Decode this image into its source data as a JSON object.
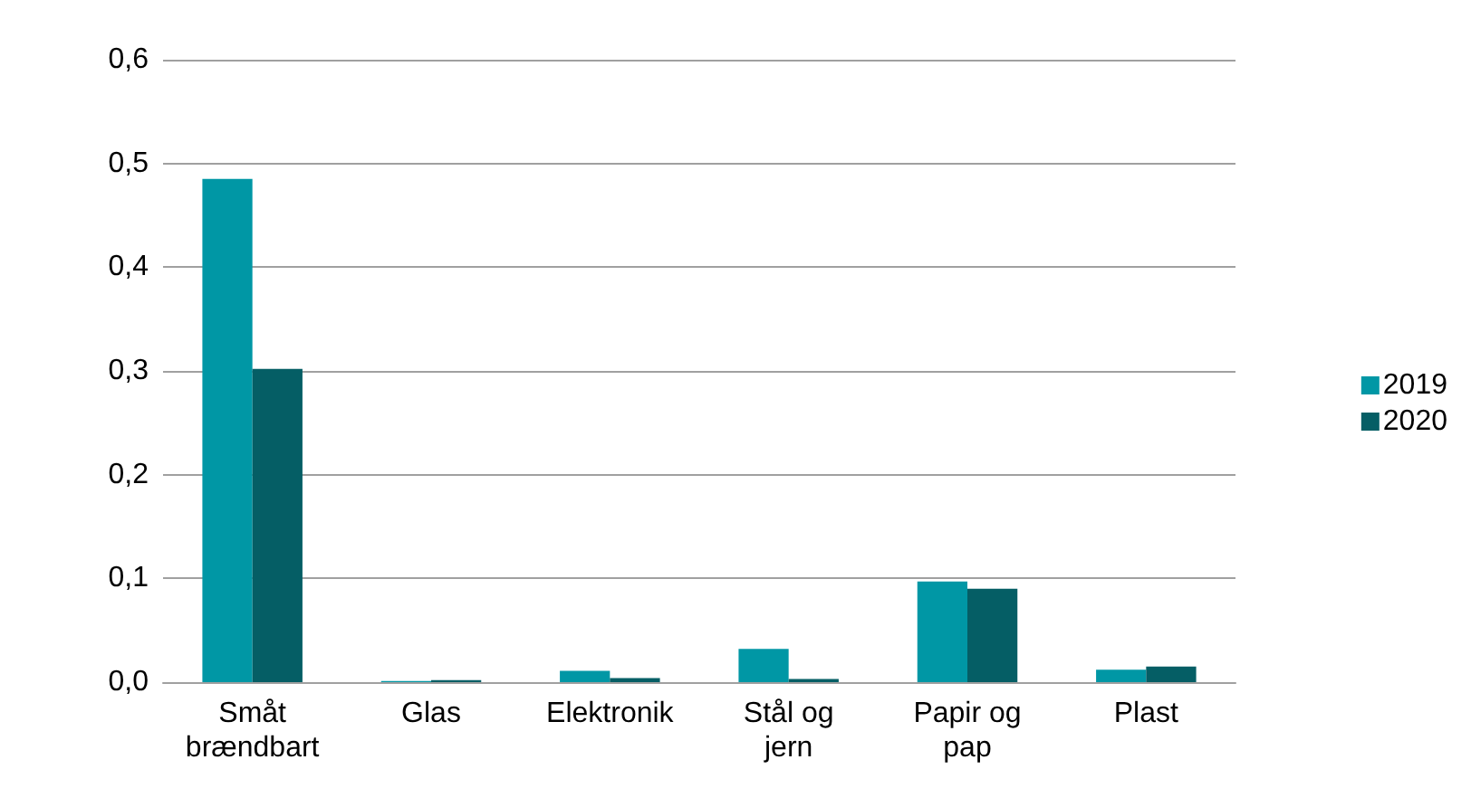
{
  "chart_data": {
    "type": "bar",
    "categories": [
      "Småt\nbrændbart",
      "Glas",
      "Elektronik",
      "Stål og\njern",
      "Papir og\npap",
      "Plast"
    ],
    "series": [
      {
        "name": "2019",
        "color": "#0097a5",
        "values": [
          0.485,
          0.001,
          0.011,
          0.032,
          0.097,
          0.012
        ]
      },
      {
        "name": "2020",
        "color": "#055e65",
        "values": [
          0.302,
          0.002,
          0.004,
          0.003,
          0.09,
          0.015
        ]
      }
    ],
    "ylim": [
      0,
      0.6
    ],
    "yticks": [
      {
        "value": 0,
        "label": "0,0"
      },
      {
        "value": 0.1,
        "label": "0,1"
      },
      {
        "value": 0.2,
        "label": "0,2"
      },
      {
        "value": 0.3,
        "label": "0,3"
      },
      {
        "value": 0.4,
        "label": "0,4"
      },
      {
        "value": 0.5,
        "label": "0,5"
      },
      {
        "value": 0.6,
        "label": "0,6"
      }
    ],
    "grid": "y",
    "legend": "right"
  }
}
